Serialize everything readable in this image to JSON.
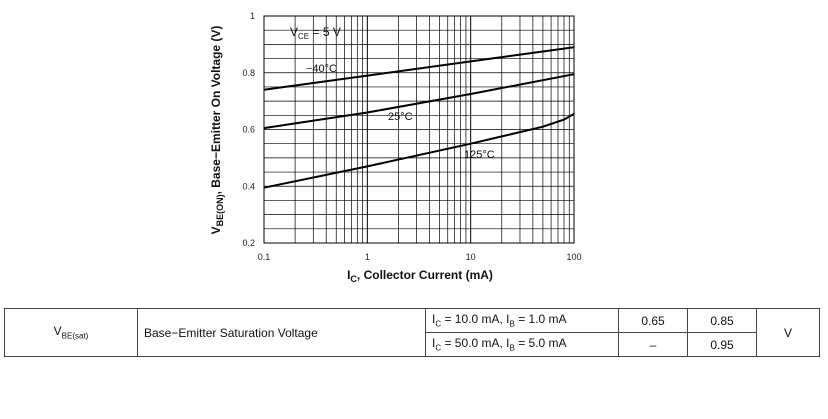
{
  "chart_data": {
    "type": "line",
    "title": "",
    "xscale": "log",
    "xlim": [
      0.1,
      100
    ],
    "ylim": [
      0.2,
      1.0
    ],
    "x_ticks": [
      {
        "value": 0.1,
        "label": "0.1"
      },
      {
        "value": 1,
        "label": "1"
      },
      {
        "value": 10,
        "label": "10"
      },
      {
        "value": 100,
        "label": "100"
      }
    ],
    "y_ticks": [
      {
        "value": 0.2,
        "label": "0.2"
      },
      {
        "value": 0.4,
        "label": "0.4"
      },
      {
        "value": 0.6,
        "label": "0.6"
      },
      {
        "value": 0.8,
        "label": "0.8"
      },
      {
        "value": 1.0,
        "label": "1"
      }
    ],
    "xlabel": {
      "main": "I",
      "sub": "C",
      "rest": ", Collector Current (mA)"
    },
    "ylabel": {
      "main": "V",
      "sub": "BE(ON)",
      "rest": ", Base−Emitter On Voltage (V)"
    },
    "annotation": {
      "main": "V",
      "sub": "CE",
      "rest": " = 5 V"
    },
    "grid": true,
    "series": [
      {
        "name": "−40°C",
        "x": [
          0.1,
          1,
          10,
          100
        ],
        "y": [
          0.74,
          0.79,
          0.84,
          0.89
        ]
      },
      {
        "name": "25°C",
        "x": [
          0.1,
          1,
          10,
          100
        ],
        "y": [
          0.605,
          0.66,
          0.725,
          0.795
        ]
      },
      {
        "name": "125°C",
        "x": [
          0.1,
          1,
          10,
          50,
          80,
          100
        ],
        "y": [
          0.395,
          0.47,
          0.55,
          0.61,
          0.635,
          0.655
        ]
      }
    ]
  },
  "table": {
    "symbol": {
      "main": "V",
      "sub": "BE(sat)"
    },
    "description": "Base−Emitter Saturation Voltage",
    "unit": "V",
    "rows": [
      {
        "ic": "I",
        "ic_sub": "C",
        "ic_val": " = 10.0 mA, ",
        "ib": "I",
        "ib_sub": "B",
        "ib_val": " = 1.0 mA",
        "min": "0.65",
        "max": "0.85"
      },
      {
        "ic": "I",
        "ic_sub": "C",
        "ic_val": " = 50.0 mA, ",
        "ib": "I",
        "ib_sub": "B",
        "ib_val": " = 5.0 mA",
        "min": "–",
        "max": "0.95"
      }
    ]
  }
}
